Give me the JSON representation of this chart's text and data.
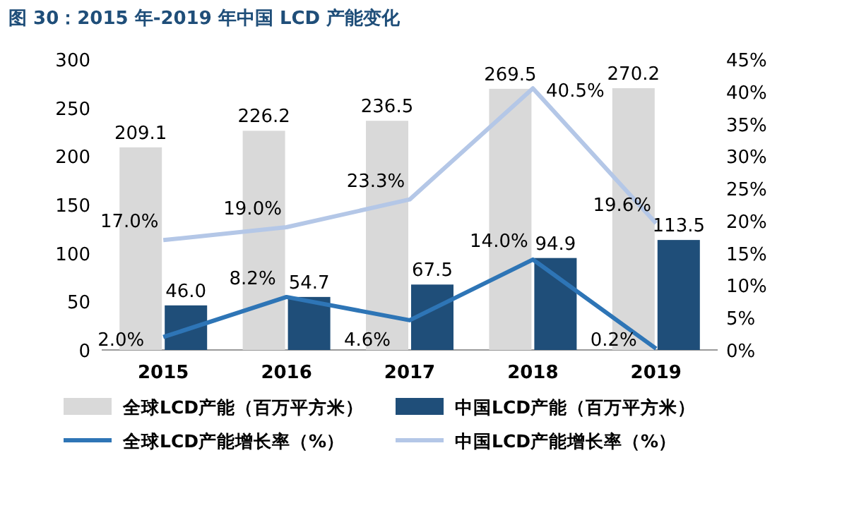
{
  "chart_data": {
    "type": "bar",
    "title": "图 30：2015 年-2019 年中国 LCD 产能变化",
    "categories": [
      "2015",
      "2016",
      "2017",
      "2018",
      "2019"
    ],
    "series": [
      {
        "name": "全球LCD产能（百万平方米）",
        "type": "bar",
        "color": "#d9d9d9",
        "values": [
          209.1,
          226.2,
          236.5,
          269.5,
          270.2
        ],
        "value_labels": [
          "209.1",
          "226.2",
          "236.5",
          "269.5",
          "270.2"
        ]
      },
      {
        "name": "中国LCD产能（百万平方米）",
        "type": "bar",
        "color": "#1f4e79",
        "values": [
          46.0,
          54.7,
          67.5,
          94.9,
          113.5
        ],
        "value_labels": [
          "46.0",
          "54.7",
          "67.5",
          "94.9",
          "113.5"
        ]
      },
      {
        "name": "全球LCD产能增长率（%）",
        "type": "line",
        "axis": "y2",
        "color": "#2e75b6",
        "values": [
          2.0,
          8.2,
          4.6,
          14.0,
          0.2
        ],
        "value_labels": [
          "2.0%",
          "8.2%",
          "4.6%",
          "14.0%",
          "0.2%"
        ]
      },
      {
        "name": "中国LCD产能增长率（%）",
        "type": "line",
        "axis": "y2",
        "color": "#b4c7e7",
        "values": [
          17.0,
          19.0,
          23.3,
          40.5,
          19.6
        ],
        "value_labels": [
          "17.0%",
          "19.0%",
          "23.3%",
          "40.5%",
          "19.6%"
        ]
      }
    ],
    "ylim": [
      0,
      300
    ],
    "yticks": [
      0,
      50,
      100,
      150,
      200,
      250,
      300
    ],
    "y2lim": [
      0,
      45
    ],
    "y2ticks": [
      {
        "value": 0,
        "label": "0%"
      },
      {
        "value": 5,
        "label": "5%"
      },
      {
        "value": 10,
        "label": "10%"
      },
      {
        "value": 15,
        "label": "15%"
      },
      {
        "value": 20,
        "label": "20%"
      },
      {
        "value": 25,
        "label": "25%"
      },
      {
        "value": 30,
        "label": "30%"
      },
      {
        "value": 35,
        "label": "35%"
      },
      {
        "value": 40,
        "label": "40%"
      },
      {
        "value": 45,
        "label": "45%"
      }
    ],
    "grid": false,
    "legend": "bottom",
    "marker": "none",
    "line_style": "solid"
  }
}
